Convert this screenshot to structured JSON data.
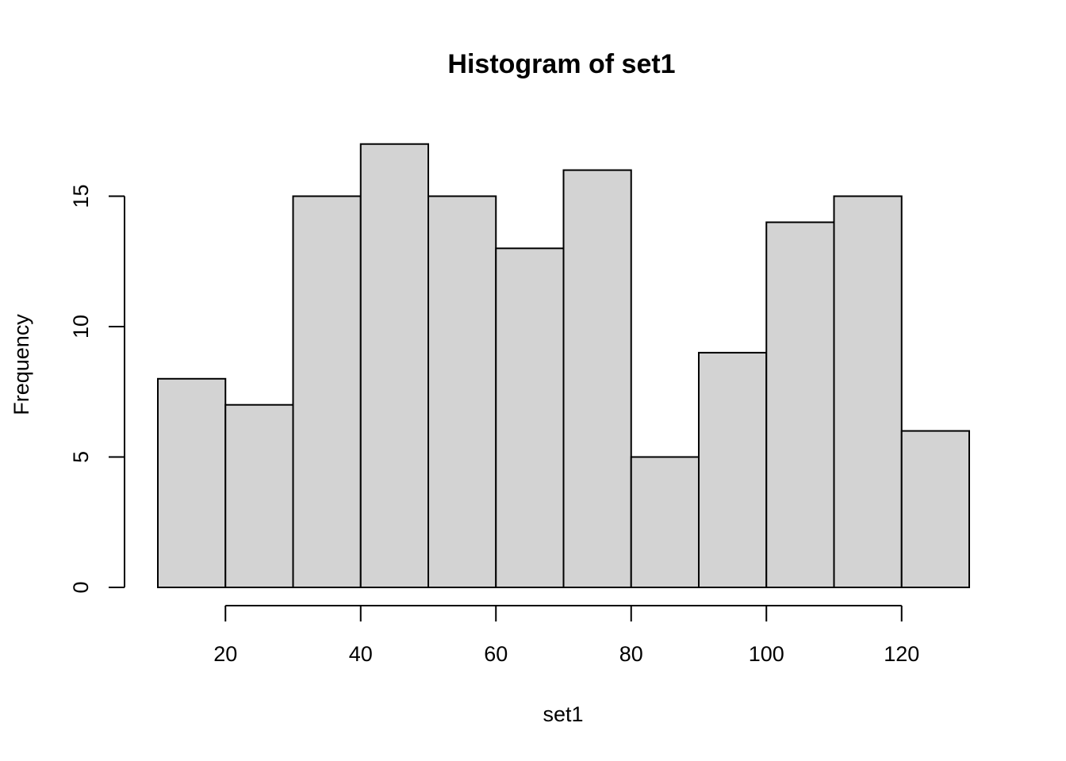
{
  "chart_data": {
    "type": "bar",
    "title": "Histogram of set1",
    "xlabel": "set1",
    "ylabel": "Frequency",
    "bins": [
      {
        "start": 10,
        "end": 20,
        "count": 8
      },
      {
        "start": 20,
        "end": 30,
        "count": 7
      },
      {
        "start": 30,
        "end": 40,
        "count": 15
      },
      {
        "start": 40,
        "end": 50,
        "count": 17
      },
      {
        "start": 50,
        "end": 60,
        "count": 15
      },
      {
        "start": 60,
        "end": 70,
        "count": 13
      },
      {
        "start": 70,
        "end": 80,
        "count": 16
      },
      {
        "start": 80,
        "end": 90,
        "count": 5
      },
      {
        "start": 90,
        "end": 100,
        "count": 9
      },
      {
        "start": 100,
        "end": 110,
        "count": 14
      },
      {
        "start": 110,
        "end": 120,
        "count": 15
      },
      {
        "start": 120,
        "end": 130,
        "count": 6
      }
    ],
    "xlim": [
      10,
      130
    ],
    "ylim": [
      0,
      17
    ],
    "x_ticks": [
      20,
      40,
      60,
      80,
      100,
      120
    ],
    "x_tick_labels": [
      "20",
      "40",
      "60",
      "80",
      "100",
      "120"
    ],
    "y_ticks": [
      0,
      5,
      10,
      15
    ],
    "y_tick_labels": [
      "0",
      "5",
      "10",
      "15"
    ],
    "bar_color": "#d3d3d3",
    "border_color": "#000000",
    "grid": false,
    "legend": "none"
  }
}
